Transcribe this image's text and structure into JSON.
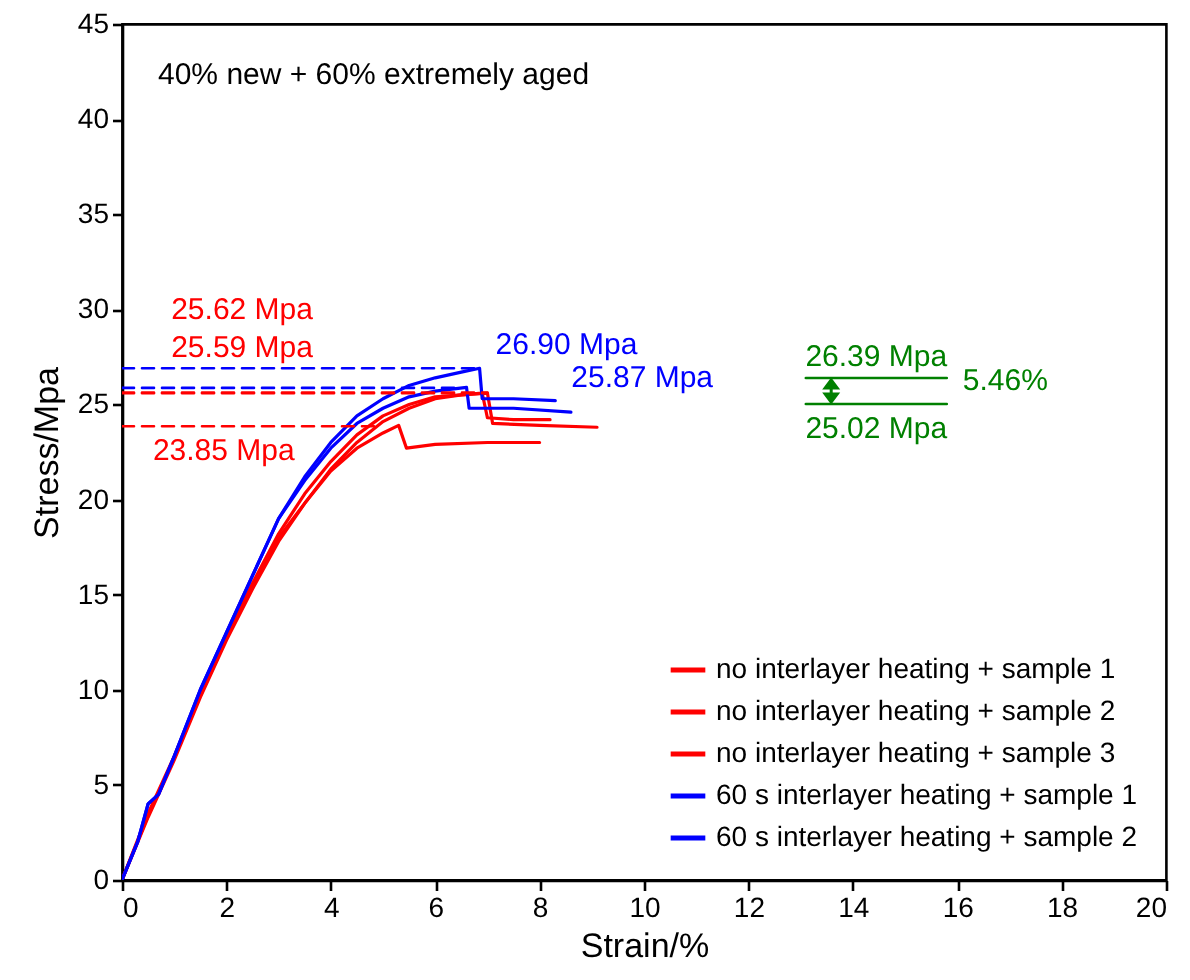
{
  "chart_data": {
    "type": "line",
    "xlabel": "Strain/%",
    "ylabel": "Stress/Mpa",
    "xlim": [
      0,
      20
    ],
    "xticks": [
      0,
      2,
      4,
      6,
      8,
      10,
      12,
      14,
      16,
      18,
      20
    ],
    "ylim": [
      0,
      45
    ],
    "yticks": [
      0,
      5,
      10,
      15,
      20,
      25,
      30,
      35,
      40,
      45
    ],
    "grid": false,
    "legend": "bottom right",
    "line_style": "solid",
    "marker": "none",
    "series": [
      {
        "name": "no interlayer heating + sample 1",
        "color": "#ff0000",
        "x": [
          0,
          0.5,
          1,
          1.5,
          2,
          2.5,
          3,
          3.5,
          4,
          4.5,
          5,
          5.5,
          6,
          6.5,
          7,
          7.1,
          8,
          9.1
        ],
        "values": [
          0,
          3.3,
          6.3,
          9.6,
          12.6,
          15.3,
          17.8,
          19.8,
          21.6,
          23,
          24.1,
          24.8,
          25.3,
          25.5,
          25.6,
          24,
          23.9,
          23.8
        ]
      },
      {
        "name": "no interlayer heating + sample 2",
        "color": "#ff0000",
        "x": [
          0,
          0.5,
          1,
          1.5,
          2,
          2.5,
          3,
          3.5,
          4,
          4.5,
          5,
          5.5,
          6,
          6.5,
          6.9,
          7,
          7.5,
          8.2
        ],
        "values": [
          0,
          3.5,
          6.5,
          9.8,
          12.8,
          15.6,
          18.2,
          20.3,
          22,
          23.4,
          24.4,
          25,
          25.4,
          25.5,
          25.6,
          24.3,
          24.2,
          24.2
        ]
      },
      {
        "name": "no interlayer heating + sample 3",
        "color": "#ff0000",
        "x": [
          0,
          0.5,
          1,
          1.5,
          2,
          2.5,
          3,
          3.5,
          4,
          4.5,
          5,
          5.3,
          5.45,
          6,
          7,
          8
        ],
        "values": [
          0,
          3.4,
          6.4,
          9.7,
          12.7,
          15.5,
          18,
          19.8,
          21.5,
          22.7,
          23.5,
          23.9,
          22.7,
          22.9,
          23,
          23
        ]
      },
      {
        "name": "60 s interlayer heating + sample 1",
        "color": "#0000ff",
        "x": [
          0,
          0.3,
          0.5,
          0.7,
          1,
          1.5,
          2,
          2.5,
          3,
          3.5,
          4,
          4.5,
          5,
          5.5,
          6,
          6.5,
          6.85,
          6.9,
          7.5,
          8.3
        ],
        "values": [
          0,
          2,
          4,
          4.5,
          6.5,
          10,
          13,
          16,
          19,
          21.2,
          23,
          24.4,
          25.3,
          26,
          26.4,
          26.7,
          26.9,
          25.3,
          25.3,
          25.2
        ]
      },
      {
        "name": "60 s interlayer heating + sample 2",
        "color": "#0000ff",
        "x": [
          0,
          0.3,
          0.5,
          0.7,
          1,
          1.5,
          2,
          2.5,
          3,
          3.5,
          4,
          4.5,
          5,
          5.5,
          6,
          6.6,
          6.65,
          7.5,
          8.6
        ],
        "values": [
          0,
          2,
          4,
          4.5,
          6.5,
          10,
          13,
          16,
          19,
          21,
          22.7,
          24,
          24.8,
          25.4,
          25.7,
          25.9,
          24.8,
          24.8,
          24.6
        ]
      },
      {
        "color": "#0000ff",
        "line_style": "dashed",
        "x": [
          0,
          6.85
        ],
        "values": [
          26.9,
          26.9
        ]
      },
      {
        "color": "#0000ff",
        "line_style": "dashed",
        "x": [
          0,
          6.4
        ],
        "values": [
          25.87,
          25.87
        ]
      },
      {
        "color": "#ff0000",
        "line_style": "dashed",
        "x": [
          0,
          7
        ],
        "values": [
          25.62,
          25.62
        ]
      },
      {
        "color": "#ff0000",
        "line_style": "dashed",
        "x": [
          0,
          7
        ],
        "values": [
          25.59,
          25.59
        ]
      },
      {
        "color": "#ff0000",
        "line_style": "dashed",
        "x": [
          0,
          4.9
        ],
        "values": [
          23.85,
          23.85
        ]
      },
      {
        "color": "#008000",
        "line_style": "solid",
        "x": [
          13.1,
          15.8
        ],
        "values": [
          26.39,
          26.39
        ]
      },
      {
        "color": "#008000",
        "line_style": "solid",
        "x": [
          13.1,
          15.8
        ],
        "values": [
          25.02,
          25.02
        ]
      }
    ],
    "annotations": [
      "40% new + 60% extremely aged",
      {
        "text": "25.62 Mpa",
        "x": 2.3,
        "y": 25.62
      },
      {
        "text": "25.59 Mpa",
        "x": 2.3,
        "y": 25.59
      },
      {
        "text": "23.85 Mpa",
        "x": 1.95,
        "y": 23.85
      },
      {
        "text": "26.90 Mpa",
        "x": 6.85,
        "y": 26.9
      },
      {
        "text": "25.87 Mpa",
        "x": 8.3,
        "y": 25.2
      },
      {
        "text": "26.39 Mpa",
        "x": 14.45,
        "y": 26.39
      },
      {
        "text": "25.02 Mpa",
        "x": 14.45,
        "y": 25.02
      },
      {
        "text": "5.46%",
        "x": 15.8,
        "y": 25.02
      }
    ]
  }
}
